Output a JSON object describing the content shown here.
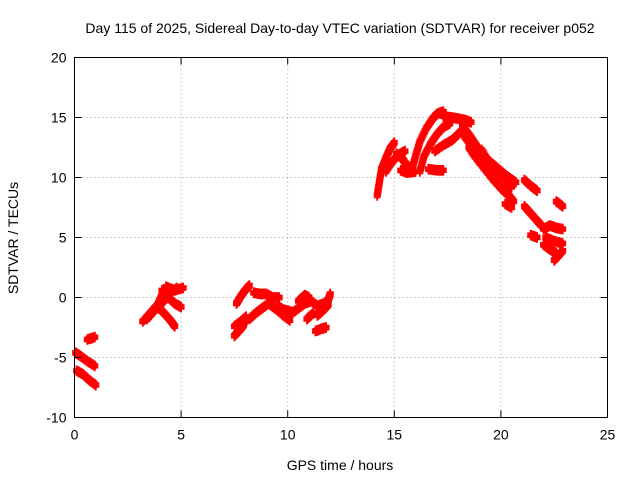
{
  "chart_data": {
    "type": "scatter",
    "title": "Day 115 of 2025, Sidereal Day-to-day VTEC variation (SDTVAR) for receiver p052",
    "xlabel": "GPS time / hours",
    "ylabel": "SDTVAR / TECUs",
    "xlim": [
      0,
      25
    ],
    "ylim": [
      -10,
      20
    ],
    "xticks": [
      "0",
      "5",
      "10",
      "15",
      "20",
      "25"
    ],
    "yticks": [
      "-10",
      "-5",
      "0",
      "5",
      "10",
      "15",
      "20"
    ],
    "grid": true,
    "marker": "cross",
    "color": "#ff0000",
    "segments": [
      [
        [
          0.05,
          -4.6
        ],
        [
          0.3,
          -4.9
        ],
        [
          0.6,
          -5.3
        ],
        [
          0.95,
          -5.7
        ]
      ],
      [
        [
          0.6,
          -3.5
        ],
        [
          0.95,
          -3.3
        ]
      ],
      [
        [
          0.1,
          -6.1
        ],
        [
          0.4,
          -6.4
        ],
        [
          0.7,
          -6.9
        ],
        [
          1.0,
          -7.3
        ]
      ],
      [
        [
          3.2,
          -2.0
        ],
        [
          3.6,
          -1.2
        ],
        [
          3.9,
          -0.6
        ],
        [
          4.1,
          0.2
        ],
        [
          4.3,
          0.8
        ]
      ],
      [
        [
          3.4,
          -1.8
        ],
        [
          3.8,
          -1.0
        ],
        [
          4.2,
          -0.3
        ],
        [
          4.5,
          0.4
        ],
        [
          4.8,
          0.8
        ]
      ],
      [
        [
          3.9,
          -0.8
        ],
        [
          4.2,
          -1.3
        ],
        [
          4.5,
          -1.9
        ],
        [
          4.7,
          -2.4
        ]
      ],
      [
        [
          4.1,
          0.6
        ],
        [
          4.4,
          0.0
        ],
        [
          4.7,
          -0.5
        ],
        [
          5.0,
          -0.8
        ]
      ],
      [
        [
          4.3,
          0.9
        ],
        [
          4.7,
          0.6
        ],
        [
          5.1,
          0.8
        ]
      ],
      [
        [
          7.5,
          -3.2
        ],
        [
          7.7,
          -2.8
        ],
        [
          7.9,
          -2.4
        ],
        [
          8.0,
          -1.9
        ]
      ],
      [
        [
          7.5,
          -2.4
        ],
        [
          7.8,
          -2.0
        ],
        [
          8.05,
          -1.6
        ]
      ],
      [
        [
          7.6,
          -0.5
        ],
        [
          7.8,
          0.1
        ],
        [
          8.0,
          0.6
        ],
        [
          8.2,
          1.0
        ]
      ],
      [
        [
          8.2,
          -1.8
        ],
        [
          8.5,
          -1.3
        ],
        [
          8.8,
          -0.9
        ],
        [
          9.1,
          -0.5
        ],
        [
          9.4,
          -0.9
        ],
        [
          9.8,
          -1.5
        ],
        [
          10.1,
          -1.9
        ]
      ],
      [
        [
          8.4,
          0.4
        ],
        [
          8.7,
          0.3
        ],
        [
          9.0,
          0.3
        ],
        [
          9.3,
          0.0
        ],
        [
          9.6,
          0.0
        ]
      ],
      [
        [
          9.5,
          -0.7
        ],
        [
          9.8,
          -1.0
        ],
        [
          10.2,
          -1.2
        ]
      ],
      [
        [
          10.2,
          -1.3
        ],
        [
          10.5,
          -0.9
        ],
        [
          10.8,
          -0.5
        ],
        [
          11.1,
          -0.3
        ],
        [
          11.4,
          -0.7
        ],
        [
          11.7,
          -0.5
        ],
        [
          11.9,
          -0.2
        ],
        [
          12.0,
          0.3
        ]
      ],
      [
        [
          10.5,
          -0.3
        ],
        [
          10.8,
          0.2
        ],
        [
          11.0,
          0.0
        ]
      ],
      [
        [
          10.9,
          -1.8
        ],
        [
          11.2,
          -1.3
        ]
      ],
      [
        [
          11.3,
          -2.8
        ],
        [
          11.6,
          -2.6
        ],
        [
          11.8,
          -2.5
        ]
      ],
      [
        [
          11.4,
          -1.5
        ],
        [
          11.7,
          -1.0
        ],
        [
          11.9,
          -0.6
        ]
      ],
      [
        [
          14.2,
          8.5
        ],
        [
          14.3,
          9.6
        ],
        [
          14.4,
          10.7
        ],
        [
          14.6,
          11.6
        ],
        [
          14.8,
          12.4
        ],
        [
          15.0,
          12.9
        ]
      ],
      [
        [
          14.6,
          10.5
        ],
        [
          14.9,
          11.3
        ],
        [
          15.2,
          11.9
        ],
        [
          15.5,
          12.2
        ]
      ],
      [
        [
          15.1,
          12.0
        ],
        [
          15.4,
          11.5
        ],
        [
          15.6,
          11.0
        ],
        [
          15.9,
          10.5
        ]
      ],
      [
        [
          15.3,
          10.6
        ],
        [
          15.6,
          10.4
        ],
        [
          16.0,
          10.5
        ]
      ],
      [
        [
          15.8,
          10.5
        ],
        [
          16.0,
          11.8
        ],
        [
          16.2,
          13.0
        ],
        [
          16.5,
          14.1
        ],
        [
          16.8,
          14.9
        ],
        [
          17.0,
          15.3
        ],
        [
          17.3,
          15.5
        ]
      ],
      [
        [
          16.2,
          10.5
        ],
        [
          16.4,
          11.8
        ],
        [
          16.7,
          12.8
        ],
        [
          17.0,
          13.6
        ],
        [
          17.3,
          14.2
        ],
        [
          17.6,
          14.5
        ]
      ],
      [
        [
          16.6,
          10.7
        ],
        [
          17.0,
          10.6
        ],
        [
          17.3,
          10.6
        ]
      ],
      [
        [
          16.9,
          12.2
        ],
        [
          17.3,
          12.7
        ],
        [
          17.7,
          13.1
        ],
        [
          18.0,
          13.6
        ],
        [
          18.3,
          14.2
        ]
      ],
      [
        [
          17.3,
          15.1
        ],
        [
          17.7,
          15.0
        ],
        [
          18.0,
          14.9
        ],
        [
          18.3,
          14.8
        ],
        [
          18.6,
          14.6
        ]
      ],
      [
        [
          18.2,
          14.3
        ],
        [
          18.5,
          13.6
        ],
        [
          18.8,
          12.8
        ],
        [
          19.1,
          12.0
        ],
        [
          19.5,
          11.3
        ],
        [
          19.9,
          10.7
        ],
        [
          20.3,
          10.1
        ],
        [
          20.7,
          9.6
        ]
      ],
      [
        [
          18.3,
          13.4
        ],
        [
          18.6,
          12.7
        ],
        [
          18.9,
          12.0
        ],
        [
          19.2,
          11.1
        ],
        [
          19.6,
          10.2
        ],
        [
          19.9,
          9.4
        ],
        [
          20.3,
          8.7
        ],
        [
          20.6,
          8.0
        ]
      ],
      [
        [
          18.5,
          12.5
        ],
        [
          18.8,
          11.7
        ],
        [
          19.2,
          10.8
        ],
        [
          19.6,
          9.9
        ],
        [
          20.0,
          9.1
        ],
        [
          20.3,
          8.6
        ]
      ],
      [
        [
          19.1,
          12.3
        ],
        [
          19.4,
          11.4
        ],
        [
          19.7,
          10.7
        ],
        [
          20.1,
          10.0
        ],
        [
          20.5,
          9.2
        ]
      ],
      [
        [
          20.2,
          7.8
        ],
        [
          20.5,
          7.5
        ]
      ],
      [
        [
          21.1,
          9.8
        ],
        [
          21.4,
          9.3
        ],
        [
          21.7,
          8.9
        ]
      ],
      [
        [
          21.1,
          7.6
        ],
        [
          21.4,
          7.0
        ],
        [
          21.7,
          6.4
        ],
        [
          21.9,
          6.0
        ]
      ],
      [
        [
          21.4,
          5.2
        ],
        [
          21.7,
          5.0
        ]
      ],
      [
        [
          22.0,
          5.7
        ],
        [
          22.3,
          6.0
        ],
        [
          22.6,
          5.8
        ],
        [
          22.9,
          5.7
        ]
      ],
      [
        [
          22.0,
          4.4
        ],
        [
          22.3,
          4.0
        ],
        [
          22.6,
          3.7
        ]
      ],
      [
        [
          22.1,
          5.0
        ],
        [
          22.5,
          4.7
        ],
        [
          22.9,
          4.5
        ]
      ],
      [
        [
          22.5,
          3.1
        ],
        [
          22.7,
          3.5
        ],
        [
          22.9,
          3.9
        ]
      ],
      [
        [
          22.6,
          8.0
        ],
        [
          22.9,
          7.6
        ]
      ]
    ]
  }
}
